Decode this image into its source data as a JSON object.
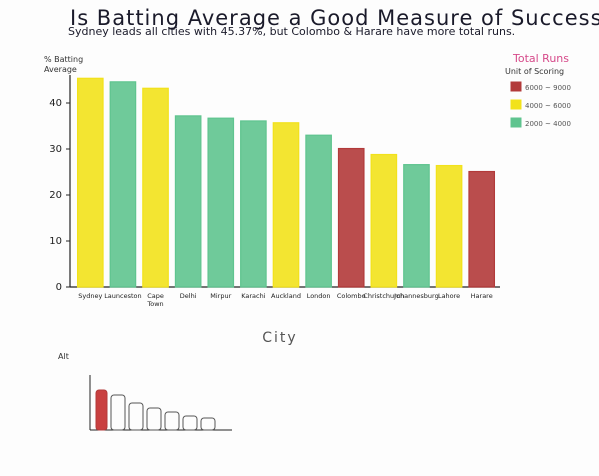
{
  "chart_data": {
    "type": "bar",
    "title": "Is Batting Average a Good Measure of Success in Cricket?",
    "subtitle": "Sydney leads all cities with 45.37%, but Colombo & Harare have more total runs.",
    "xlabel": "City",
    "ylabel": "% Batting Average",
    "ylim": [
      0,
      45
    ],
    "yticks": [
      0,
      10,
      20,
      30,
      40
    ],
    "grid": false,
    "legend_position": "top-right",
    "categories": [
      "Sydney",
      "Launceston",
      "Cape Town",
      "Delhi",
      "Mirpur",
      "Karachi",
      "Auckland",
      "London",
      "Colombo",
      "Christchurch",
      "Johannesburg",
      "Lahore",
      "Harare"
    ],
    "category_labels": [
      "Sydney",
      "Launceston",
      "Cape Town",
      "Delhi",
      "Mirpur",
      "Karachi",
      "Auckland",
      "London",
      "Colombo",
      "Christchurch",
      "Johannesburg",
      "Lahore",
      "Harare"
    ],
    "values": [
      45.37,
      44.6,
      43.2,
      37.2,
      36.7,
      36.1,
      35.7,
      33.0,
      30.1,
      28.8,
      26.6,
      26.4,
      25.1
    ],
    "run_class": [
      "mid",
      "low",
      "mid",
      "low",
      "low",
      "low",
      "mid",
      "low",
      "high",
      "mid",
      "low",
      "mid",
      "high"
    ],
    "legend": {
      "title": "Total Runs",
      "subtitle": "Unit of Scoring",
      "entries": [
        {
          "key": "high",
          "label": "6000 ~ 9000",
          "color": "#b23a3a"
        },
        {
          "key": "mid",
          "label": "4000 ~ 6000",
          "color": "#f2e21b"
        },
        {
          "key": "low",
          "label": "2000 ~ 4000",
          "color": "#5fc48f"
        }
      ]
    },
    "alt_label": "Alt"
  }
}
